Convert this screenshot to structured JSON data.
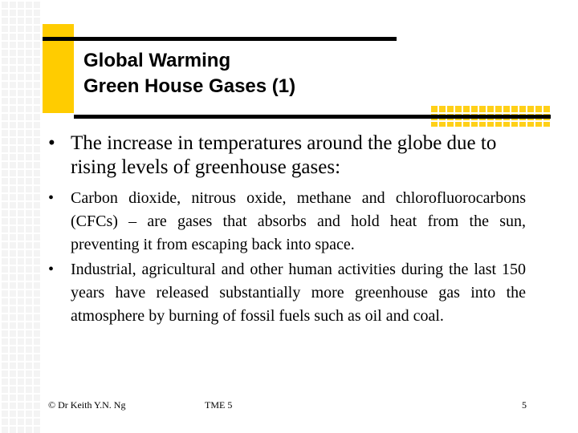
{
  "title": {
    "line1": "Global Warming",
    "line2": "Green House Gases (1)"
  },
  "main_bullet": {
    "marker": "•",
    "text": "The increase in temperatures around the globe due to rising levels of greenhouse gases:"
  },
  "sub_bullets": [
    {
      "marker": "•",
      "text": "Carbon dioxide, nitrous oxide, methane and chlorofluorocarbons (CFCs) – are gases that absorbs and hold heat from the sun, preventing it from escaping back into space."
    },
    {
      "marker": "•",
      "text": "Industrial, agricultural and other human activities during the last 150 years have released substantially more greenhouse gas into the atmosphere by burning of fossil fuels such as oil and coal."
    }
  ],
  "footer": {
    "author": "© Dr Keith Y.N. Ng",
    "course": "TME 5",
    "page_number": "5"
  },
  "colors": {
    "accent": "#ffcc00",
    "text": "#000000",
    "background": "#ffffff"
  }
}
